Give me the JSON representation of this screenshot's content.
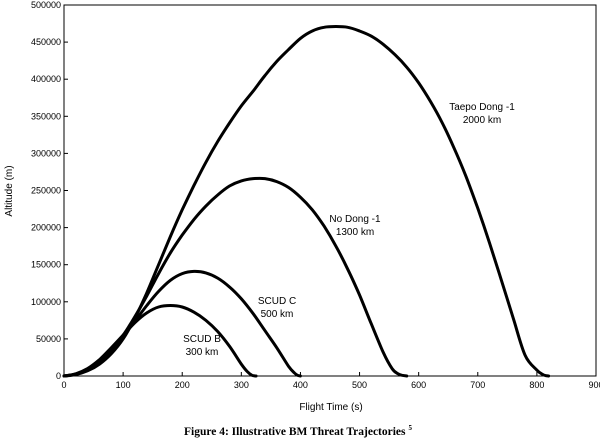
{
  "chart_data": {
    "type": "line",
    "title": "",
    "xlabel": "Flight Time (s)",
    "ylabel": "Altitude (m)",
    "xlim": [
      0,
      900
    ],
    "ylim": [
      0,
      500000
    ],
    "xticks": [
      0,
      100,
      200,
      300,
      400,
      500,
      600,
      700,
      800,
      900
    ],
    "yticks": [
      0,
      50000,
      100000,
      150000,
      200000,
      250000,
      300000,
      350000,
      400000,
      450000,
      500000
    ],
    "grid": false,
    "legend": "none",
    "series": [
      {
        "name": "SCUD B",
        "annotation": [
          "SCUD B",
          "300 km"
        ],
        "x": [
          0,
          20,
          40,
          60,
          80,
          100,
          120,
          140,
          160,
          180,
          200,
          220,
          240,
          260,
          280,
          300,
          310,
          318,
          325
        ],
        "y": [
          0,
          3000,
          10000,
          22000,
          38000,
          55000,
          72000,
          85000,
          93000,
          95000,
          93000,
          86000,
          75000,
          60000,
          40000,
          16000,
          6000,
          1000,
          0
        ]
      },
      {
        "name": "SCUD C",
        "annotation": [
          "SCUD C",
          "500 km"
        ],
        "x": [
          0,
          20,
          40,
          60,
          80,
          100,
          120,
          140,
          160,
          180,
          200,
          220,
          240,
          260,
          280,
          300,
          320,
          340,
          360,
          380,
          390,
          395,
          400
        ],
        "y": [
          0,
          2500,
          9000,
          20000,
          36000,
          54000,
          74000,
          95000,
          114000,
          129000,
          138000,
          141000,
          139000,
          132000,
          120000,
          104000,
          84000,
          61000,
          38000,
          13000,
          4000,
          1000,
          0
        ]
      },
      {
        "name": "No Dong -1",
        "annotation": [
          "No Dong -1",
          "1300 km"
        ],
        "x": [
          0,
          20,
          40,
          60,
          80,
          100,
          120,
          140,
          160,
          180,
          200,
          220,
          240,
          260,
          280,
          300,
          320,
          340,
          360,
          380,
          400,
          420,
          440,
          460,
          480,
          500,
          520,
          540,
          555,
          565,
          572,
          580
        ],
        "y": [
          0,
          2500,
          9000,
          20000,
          35000,
          55000,
          80000,
          108000,
          138000,
          166000,
          190000,
          211000,
          229000,
          244000,
          256000,
          263000,
          266000,
          266000,
          262000,
          254000,
          241000,
          224000,
          202000,
          175000,
          144000,
          109000,
          70000,
          32000,
          10000,
          3000,
          1000,
          0
        ]
      },
      {
        "name": "Taepo Dong -1",
        "annotation": [
          "Taepo Dong -1",
          "2000 km"
        ],
        "x": [
          0,
          20,
          40,
          60,
          80,
          100,
          120,
          140,
          160,
          180,
          200,
          220,
          240,
          260,
          280,
          300,
          320,
          340,
          360,
          380,
          400,
          420,
          440,
          460,
          480,
          500,
          520,
          540,
          560,
          580,
          600,
          620,
          640,
          660,
          680,
          700,
          720,
          740,
          760,
          780,
          800,
          810,
          815,
          820
        ],
        "y": [
          0,
          2000,
          7000,
          16000,
          30000,
          50000,
          78000,
          112000,
          150000,
          188000,
          224000,
          257000,
          288000,
          316000,
          341000,
          364000,
          384000,
          405000,
          424000,
          440000,
          455000,
          465000,
          470000,
          471000,
          470000,
          465000,
          458000,
          447000,
          433000,
          416000,
          395000,
          370000,
          341000,
          307000,
          269000,
          226000,
          179000,
          129000,
          78000,
          28000,
          8000,
          2000,
          600,
          0
        ]
      }
    ]
  },
  "caption": {
    "text": "Figure 4: Illustrative BM Threat Trajectories",
    "sup": "5"
  }
}
